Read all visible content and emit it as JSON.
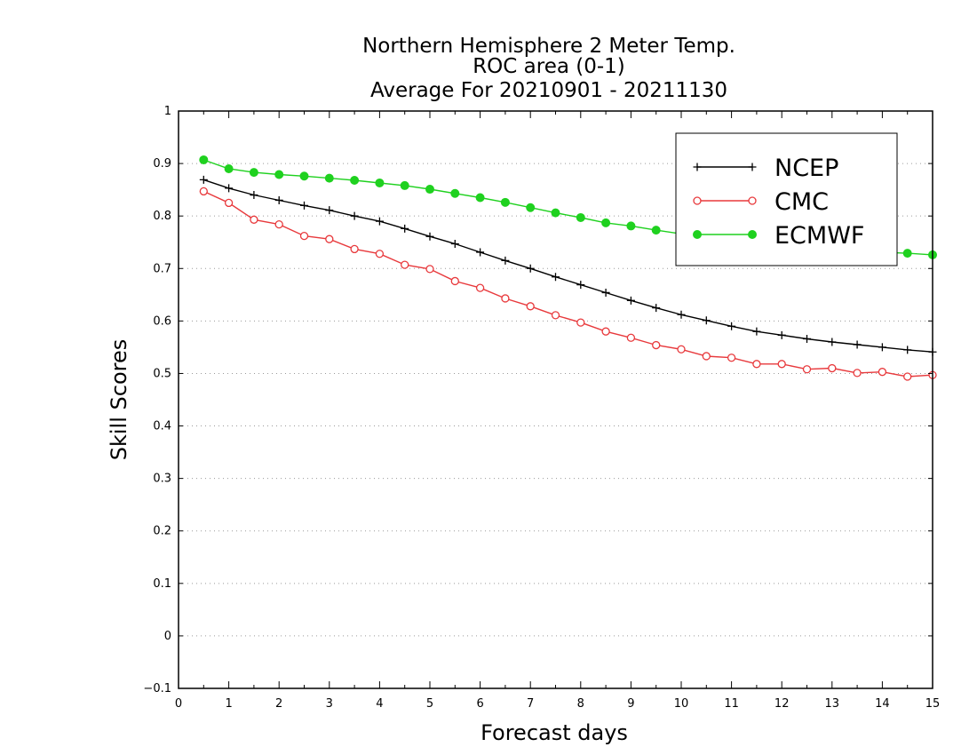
{
  "chart_data": {
    "type": "line",
    "title_lines": [
      "Northern Hemisphere 2 Meter Temp.",
      "ROC area (0-1)",
      "Average For 20210901 - 20211130"
    ],
    "xlabel": "Forecast days",
    "ylabel": "Skill Scores",
    "xlim": [
      0,
      15
    ],
    "ylim": [
      -0.1,
      1
    ],
    "x_ticks": [
      "0",
      "1",
      "2",
      "3",
      "4",
      "5",
      "6",
      "7",
      "8",
      "9",
      "10",
      "11",
      "12",
      "13",
      "14",
      "15"
    ],
    "y_ticks": [
      "−0.1",
      "0",
      "0.1",
      "0.2",
      "0.3",
      "0.4",
      "0.5",
      "0.6",
      "0.7",
      "0.8",
      "0.9",
      "1"
    ],
    "grid": "horizontal dotted",
    "legend_position": "top-right",
    "x": [
      0.5,
      1,
      1.5,
      2,
      2.5,
      3,
      3.5,
      4,
      4.5,
      5,
      5.5,
      6,
      6.5,
      7,
      7.5,
      8,
      8.5,
      9,
      9.5,
      10,
      10.5,
      11,
      11.5,
      12,
      12.5,
      13,
      13.5,
      14,
      14.5,
      15
    ],
    "series": [
      {
        "name": "NCEP",
        "color": "#000000",
        "marker": "plus",
        "values": [
          0.869,
          0.853,
          0.84,
          0.83,
          0.82,
          0.811,
          0.8,
          0.79,
          0.776,
          0.761,
          0.747,
          0.731,
          0.715,
          0.7,
          0.684,
          0.669,
          0.654,
          0.639,
          0.625,
          0.612,
          0.601,
          0.59,
          0.58,
          0.573,
          0.566,
          0.56,
          0.555,
          0.55,
          0.545,
          0.541
        ]
      },
      {
        "name": "CMC",
        "color": "#e8393c",
        "marker": "open-circle",
        "values": [
          0.847,
          0.825,
          0.793,
          0.784,
          0.762,
          0.756,
          0.737,
          0.728,
          0.707,
          0.699,
          0.676,
          0.663,
          0.643,
          0.628,
          0.611,
          0.597,
          0.58,
          0.568,
          0.554,
          0.546,
          0.533,
          0.53,
          0.518,
          0.518,
          0.508,
          0.51,
          0.501,
          0.503,
          0.494,
          0.497
        ]
      },
      {
        "name": "ECMWF",
        "color": "#1fd11f",
        "marker": "filled-circle",
        "values": [
          0.907,
          0.89,
          0.883,
          0.879,
          0.876,
          0.872,
          0.868,
          0.863,
          0.858,
          0.851,
          0.843,
          0.835,
          0.826,
          0.816,
          0.806,
          0.797,
          0.787,
          0.781,
          0.773,
          0.766,
          0.76,
          0.755,
          0.749,
          0.744,
          0.74,
          0.736,
          0.733,
          0.731,
          0.729,
          0.726
        ]
      }
    ]
  }
}
